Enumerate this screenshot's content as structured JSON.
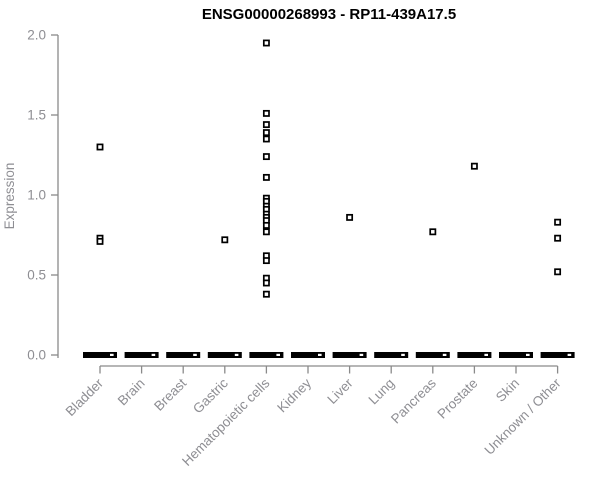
{
  "title": "ENSG00000268993 - RP11-439A17.5",
  "chart_data": {
    "type": "scatter",
    "subtype": "strip-plot",
    "title": "ENSG00000268993 - RP11-439A17.5",
    "xlabel": "",
    "ylabel": "Expression",
    "ylim": [
      0.0,
      2.0
    ],
    "yticks": [
      "0.0",
      "0.5",
      "1.0",
      "1.5",
      "2.0"
    ],
    "grid": false,
    "legend": false,
    "marker": "open-square",
    "categories": [
      "Bladder",
      "Brain",
      "Breast",
      "Gastric",
      "Hematopoietic cells",
      "Kidney",
      "Liver",
      "Lung",
      "Pancreas",
      "Prostate",
      "Skin",
      "Unknown / Other"
    ],
    "series": [
      {
        "category": "Bladder",
        "values": [
          1.3,
          0.73,
          0.71
        ],
        "zero_cluster_dash": true
      },
      {
        "category": "Brain",
        "values": [],
        "zero_cluster_dash": true
      },
      {
        "category": "Breast",
        "values": [],
        "zero_cluster_dash": true
      },
      {
        "category": "Gastric",
        "values": [
          0.72
        ],
        "zero_cluster_dash": true
      },
      {
        "category": "Hematopoietic cells",
        "values": [
          1.95,
          1.51,
          1.44,
          1.39,
          1.35,
          1.24,
          1.11,
          0.98,
          0.96,
          0.93,
          0.91,
          0.88,
          0.86,
          0.84,
          0.81,
          0.77,
          0.62,
          0.59,
          0.48,
          0.45,
          0.38
        ],
        "zero_cluster_dash": true
      },
      {
        "category": "Kidney",
        "values": [],
        "zero_cluster_dash": true
      },
      {
        "category": "Liver",
        "values": [
          0.86
        ],
        "zero_cluster_dash": true
      },
      {
        "category": "Lung",
        "values": [],
        "zero_cluster_dash": true
      },
      {
        "category": "Pancreas",
        "values": [
          0.77
        ],
        "zero_cluster_dash": true
      },
      {
        "category": "Prostate",
        "values": [
          1.18
        ],
        "zero_cluster_dash": true
      },
      {
        "category": "Skin",
        "values": [],
        "zero_cluster_dash": true
      },
      {
        "category": "Unknown / Other",
        "values": [
          0.83,
          0.73,
          0.52
        ],
        "zero_cluster_dash": true
      }
    ]
  },
  "colors": {
    "background": "#ffffff",
    "title_text": "#000000",
    "axis_line": "#8a8a8a",
    "axis_text": "#8e8e93",
    "point_stroke": "#000000",
    "point_fill": "#ffffff",
    "zero_dash": "#000000"
  }
}
